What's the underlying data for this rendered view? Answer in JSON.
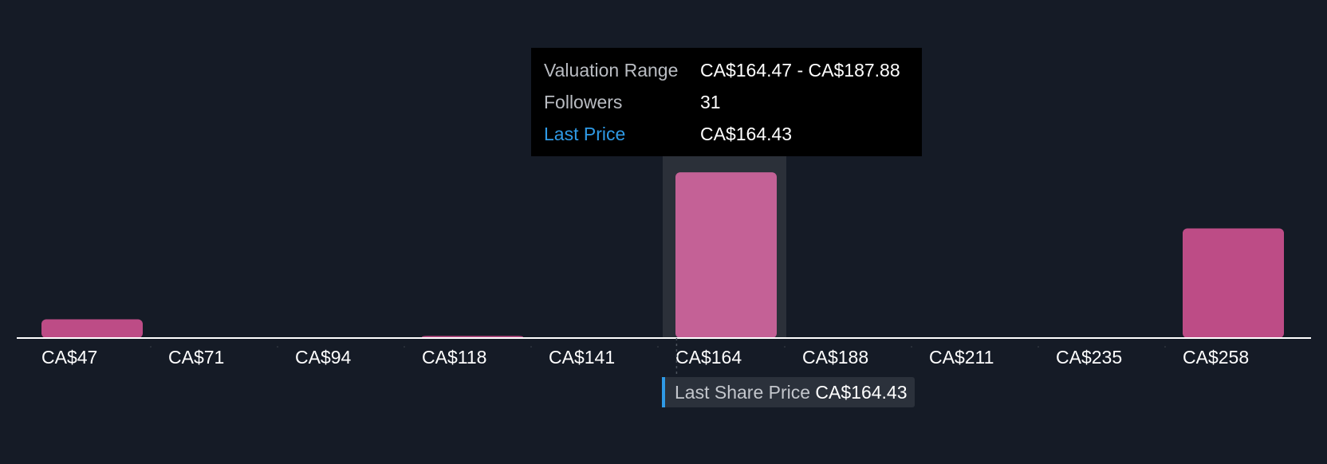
{
  "chart_data": {
    "type": "bar",
    "categories": [
      "CA$47",
      "CA$71",
      "CA$94",
      "CA$118",
      "CA$141",
      "CA$164",
      "CA$188",
      "CA$211",
      "CA$235",
      "CA$258"
    ],
    "values": [
      3.5,
      0,
      0,
      0.4,
      0,
      31,
      0,
      0,
      0,
      20.5
    ],
    "ylim": [
      0,
      34
    ],
    "highlight_index": 5,
    "last_price_value": 164.43,
    "x_domain": [
      47,
      258
    ],
    "grid": false
  },
  "colors": {
    "background": "#151b26",
    "bar": "#bd4c86",
    "bar_highlight": "#c46196",
    "highlight_band": "#2b3039",
    "axis": "#ffffff",
    "accent": "#2f9ae6"
  },
  "tooltip": {
    "rows": [
      {
        "key": "Valuation Range",
        "value": "CA$164.47 - CA$187.88"
      },
      {
        "key": "Followers",
        "value": "31"
      },
      {
        "key": "Last Price",
        "value": "CA$164.43"
      }
    ]
  },
  "last_share_price": {
    "label": "Last Share Price",
    "value": "CA$164.43"
  }
}
